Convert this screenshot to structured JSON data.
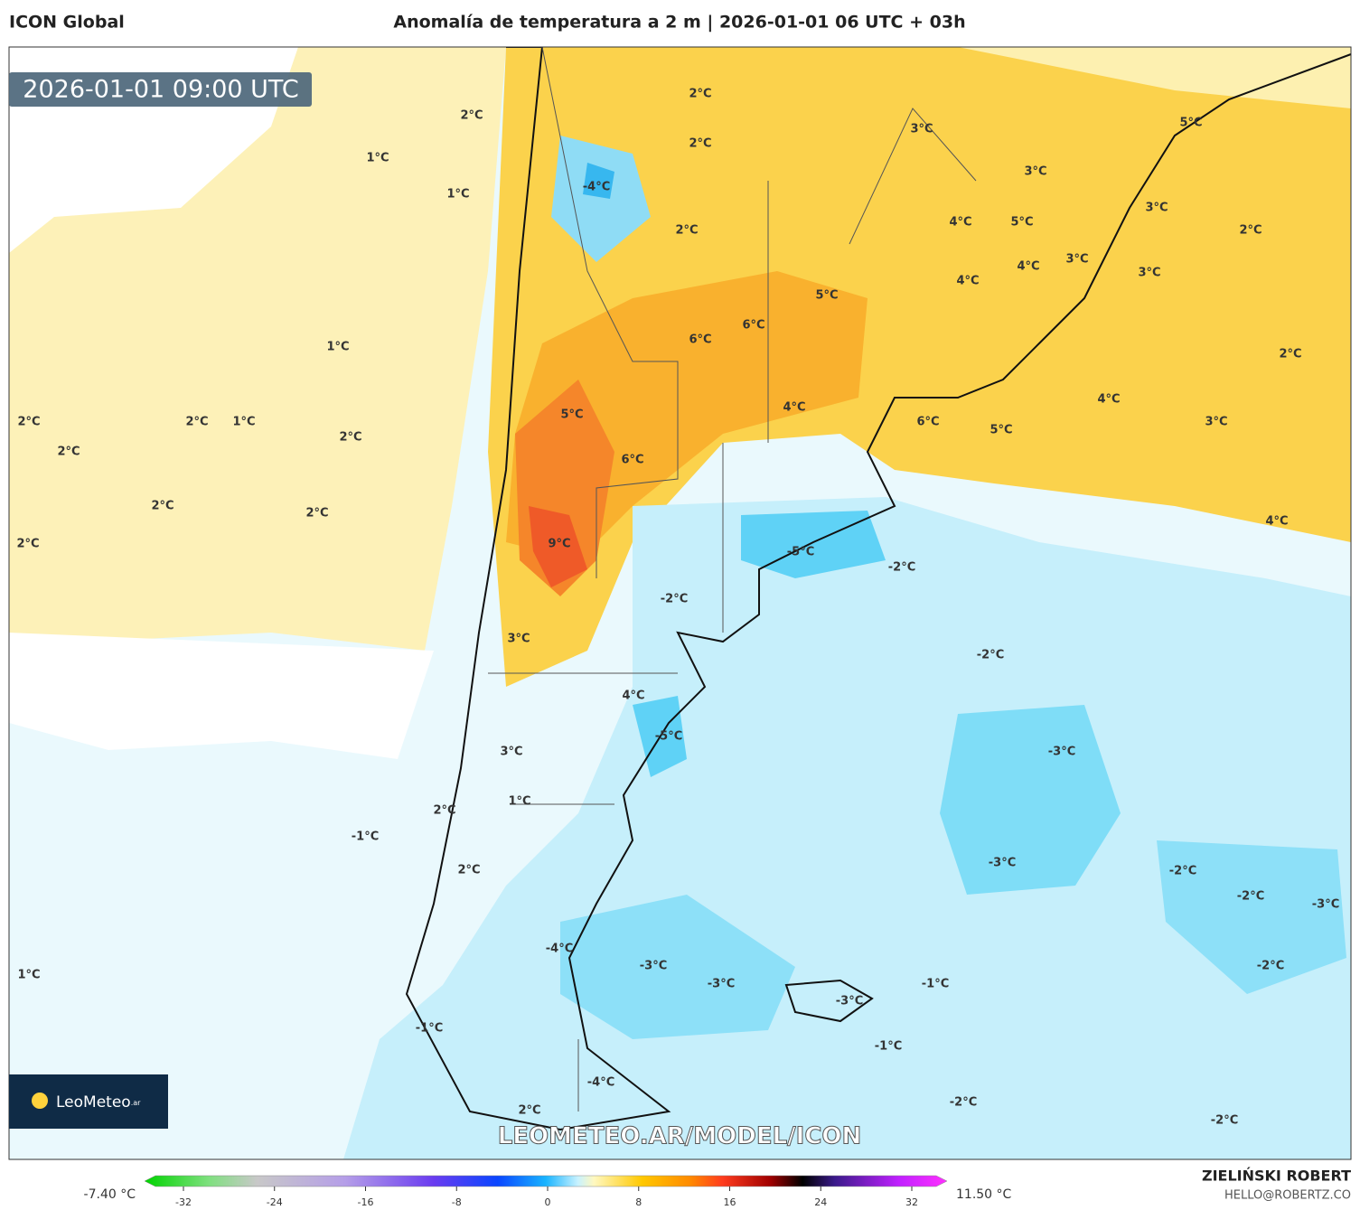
{
  "header": {
    "model": "ICON Global",
    "title": "Anomalía de temperatura a 2 m | 2026-01-01 06 UTC + 03h"
  },
  "map": {
    "timestamp": "2026-01-01 09:00 UTC",
    "labels": [
      "2°C",
      "2°C",
      "2°C",
      "1°C",
      "1°C",
      "-4°C",
      "2°C",
      "3°C",
      "3°C",
      "5°C",
      "3°C",
      "2°C",
      "4°C",
      "5°C",
      "4°C",
      "3°C",
      "3°C",
      "4°C",
      "5°C",
      "6°C",
      "6°C",
      "1°C",
      "2°C",
      "4°C",
      "4°C",
      "5°C",
      "2°C",
      "2°C",
      "1°C",
      "2°C",
      "6°C",
      "3°C",
      "5°C",
      "2°C",
      "6°C",
      "2°C",
      "2°C",
      "4°C",
      "2°C",
      "9°C",
      "-5°C",
      "-2°C",
      "-2°C",
      "3°C",
      "-2°C",
      "4°C",
      "-5°C",
      "-3°C",
      "3°C",
      "1°C",
      "2°C",
      "-1°C",
      "-3°C",
      "2°C",
      "-2°C",
      "-2°C",
      "-3°C",
      "-4°C",
      "-3°C",
      "-2°C",
      "1°C",
      "-3°C",
      "-1°C",
      "-3°C",
      "-1°C",
      "-1°C",
      "-4°C",
      "-2°C",
      "2°C",
      "-2°C"
    ],
    "watermark": "LEOMETEO.AR/MODEL/ICON",
    "logo": "LeoMeteo",
    "logo_suffix": ".ar"
  },
  "colorbar": {
    "min_label": "-7.40 °C",
    "max_label": "11.50 °C",
    "ticks": [
      -32,
      -24,
      -16,
      -8,
      0,
      8,
      16,
      24,
      32
    ]
  },
  "footer": {
    "author": "ZIELIŃSKI ROBERT",
    "contact": "HELLO@ROBERTZ.CO"
  }
}
